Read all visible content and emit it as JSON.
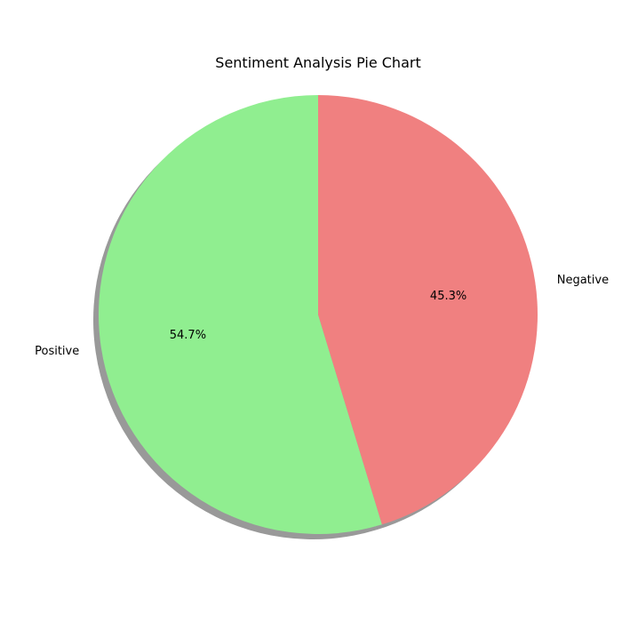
{
  "chart_data": {
    "type": "pie",
    "title": "Sentiment Analysis Pie Chart",
    "categories": [
      "Positive",
      "Negative"
    ],
    "values": [
      54.7,
      45.3
    ],
    "percent_labels": [
      "54.7%",
      "45.3%"
    ],
    "colors": [
      "#90ee90",
      "#f08080"
    ],
    "start_angle_deg": 90,
    "direction": "counterclockwise",
    "shadow": true,
    "legend": "none"
  }
}
